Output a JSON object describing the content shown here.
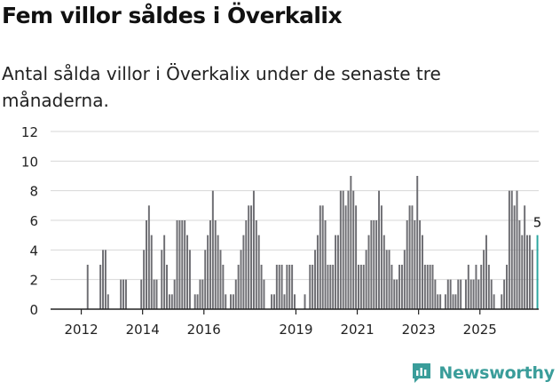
{
  "title": "Fem villor såldes i Överkalix",
  "subtitle": "Antal sålda villor i Överkalix under de senaste tre månaderna.",
  "brand": {
    "name": "Newsworthy",
    "icon": "newsworthy-logo-icon",
    "color": "#3a9d9a"
  },
  "chart_data": {
    "type": "bar",
    "title": "",
    "xlabel": "",
    "ylabel": "",
    "ylim": [
      0,
      12
    ],
    "yticks": [
      "0",
      "2",
      "4",
      "6",
      "8",
      "10",
      "12"
    ],
    "xticks": [
      {
        "label": "2012",
        "year": 2012
      },
      {
        "label": "2014",
        "year": 2014
      },
      {
        "label": "2016",
        "year": 2016
      },
      {
        "label": "2019",
        "year": 2019
      },
      {
        "label": "2021",
        "year": 2021
      },
      {
        "label": "2023",
        "year": 2023
      },
      {
        "label": "2025",
        "year": 2025
      }
    ],
    "x_start": "2011-01",
    "grid": true,
    "bar_color": "#6e6e73",
    "highlight_color": "#2aa6a0",
    "highlight_label": "5",
    "values": [
      0,
      0,
      0,
      0,
      0,
      0,
      0,
      0,
      0,
      0,
      0,
      0,
      0,
      0,
      3,
      0,
      0,
      0,
      0,
      3,
      4,
      4,
      1,
      0,
      0,
      0,
      0,
      2,
      2,
      2,
      0,
      0,
      0,
      0,
      0,
      2,
      4,
      6,
      7,
      5,
      2,
      2,
      0,
      4,
      5,
      3,
      1,
      1,
      2,
      6,
      6,
      6,
      6,
      5,
      4,
      0,
      1,
      1,
      2,
      2,
      4,
      5,
      6,
      8,
      6,
      5,
      4,
      3,
      1,
      0,
      1,
      1,
      2,
      3,
      4,
      5,
      6,
      7,
      7,
      8,
      6,
      5,
      3,
      2,
      0,
      0,
      1,
      1,
      3,
      3,
      3,
      1,
      3,
      3,
      3,
      1,
      0,
      0,
      0,
      1,
      0,
      3,
      3,
      4,
      5,
      7,
      7,
      6,
      3,
      3,
      3,
      5,
      5,
      8,
      8,
      7,
      8,
      9,
      8,
      7,
      3,
      3,
      3,
      4,
      5,
      6,
      6,
      6,
      8,
      7,
      5,
      4,
      4,
      3,
      2,
      2,
      3,
      3,
      4,
      6,
      7,
      7,
      6,
      9,
      6,
      5,
      3,
      3,
      3,
      3,
      2,
      1,
      1,
      0,
      1,
      2,
      2,
      1,
      1,
      2,
      2,
      0,
      2,
      3,
      2,
      2,
      3,
      2,
      3,
      4,
      5,
      3,
      2,
      1,
      0,
      0,
      1,
      2,
      3,
      8,
      8,
      7,
      8,
      6,
      5,
      7,
      5,
      5,
      4,
      0,
      5
    ]
  }
}
